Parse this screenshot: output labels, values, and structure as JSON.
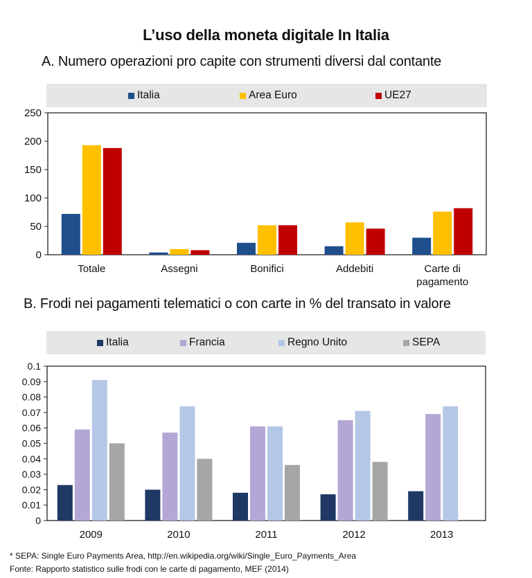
{
  "title": "L’uso della moneta digitale In Italia",
  "chart_data": [
    {
      "type": "bar",
      "title": "A. Numero operazioni pro capite con strumenti diversi dal contante",
      "categories": [
        [
          "Totale"
        ],
        [
          "Assegni"
        ],
        [
          "Bonifici"
        ],
        [
          "Addebiti"
        ],
        [
          "Carte di",
          "pagamento"
        ]
      ],
      "series": [
        {
          "name": "Italia",
          "color": "#1f4e8c",
          "values": [
            72,
            4,
            21,
            15,
            30
          ]
        },
        {
          "name": "Area Euro",
          "color": "#ffc000",
          "values": [
            193,
            10,
            52,
            57,
            76
          ]
        },
        {
          "name": "UE27",
          "color": "#c00000",
          "values": [
            188,
            8,
            52,
            46,
            82
          ]
        }
      ],
      "ylim": [
        0,
        250
      ],
      "yticks": [
        "0",
        "50",
        "100",
        "150",
        "200",
        "250"
      ],
      "grid": false,
      "legend": "top"
    },
    {
      "type": "bar",
      "title": "B. Frodi nei pagamenti telematici o con carte in % del transato in valore",
      "categories": [
        [
          "2009"
        ],
        [
          "2010"
        ],
        [
          "2011"
        ],
        [
          "2012"
        ],
        [
          "2013"
        ]
      ],
      "series": [
        {
          "name": "Italia",
          "color": "#1f3864",
          "values": [
            0.023,
            0.02,
            0.018,
            0.017,
            0.019
          ]
        },
        {
          "name": "Francia",
          "color": "#b4a7d6",
          "values": [
            0.059,
            0.057,
            0.061,
            0.065,
            0.069
          ]
        },
        {
          "name": "Regno Unito",
          "color": "#b4c7e7",
          "values": [
            0.091,
            0.074,
            0.061,
            0.071,
            0.074
          ]
        },
        {
          "name": "SEPA",
          "color": "#a6a6a6",
          "values": [
            0.05,
            0.04,
            0.036,
            0.038,
            null
          ]
        }
      ],
      "ylim": [
        0,
        0.1
      ],
      "yticks": [
        "0",
        "0.01",
        "0.02",
        "0.03",
        "0.04",
        "0.05",
        "0.06",
        "0.07",
        "0.08",
        "0.09",
        "0.1"
      ],
      "grid": false,
      "legend": "top"
    }
  ],
  "footnotes": [
    "* SEPA: Single Euro Payments Area, http://en.wikipedia.org/wiki/Single_Euro_Payments_Area",
    "Fonte: Rapporto statistico sulle frodi con le carte di pagamento, MEF (2014)"
  ]
}
